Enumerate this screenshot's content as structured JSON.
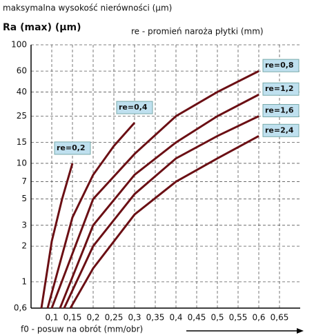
{
  "chart_data": {
    "type": "line",
    "title": "maksymalna wysokość nierówności (µm)",
    "ylabel": "Ra (max) (µm)",
    "legend_title": "re - promień naroża płytki (mm)",
    "xlabel": "f0 - posuw na obrót (mm/obr)",
    "log_y": true,
    "grid": true,
    "xlim": [
      0.05,
      0.7
    ],
    "ylim": [
      0.6,
      100
    ],
    "xticks": [
      {
        "value": 0.1,
        "label": "0,1"
      },
      {
        "value": 0.15,
        "label": "0,15"
      },
      {
        "value": 0.2,
        "label": "0,2"
      },
      {
        "value": 0.25,
        "label": "0,25"
      },
      {
        "value": 0.3,
        "label": "0,3"
      },
      {
        "value": 0.35,
        "label": "0,35"
      },
      {
        "value": 0.4,
        "label": "0,4"
      },
      {
        "value": 0.45,
        "label": "0,45"
      },
      {
        "value": 0.5,
        "label": "0,5"
      },
      {
        "value": 0.55,
        "label": "0,55"
      },
      {
        "value": 0.6,
        "label": "0,6"
      },
      {
        "value": 0.65,
        "label": "0,65"
      }
    ],
    "yticks": [
      {
        "value": 0.6,
        "label": "0,6"
      },
      1,
      2,
      3,
      5,
      7,
      10,
      15,
      25,
      40,
      60,
      100
    ],
    "series": [
      {
        "name": "re=0,2",
        "color": "#6b0f14",
        "x": [
          0.075,
          0.1,
          0.125,
          0.15
        ],
        "values": [
          0.6,
          2.2,
          5,
          10
        ]
      },
      {
        "name": "re=0,4",
        "color": "#6b0f14",
        "x": [
          0.09,
          0.15,
          0.2,
          0.25,
          0.3
        ],
        "values": [
          0.6,
          3.5,
          8,
          14,
          22
        ]
      },
      {
        "name": "re=0,8",
        "color": "#6b0f14",
        "x": [
          0.1,
          0.2,
          0.3,
          0.4,
          0.5,
          0.6
        ],
        "values": [
          0.6,
          5,
          12,
          25,
          40,
          60
        ]
      },
      {
        "name": "re=1,2",
        "color": "#6b0f14",
        "x": [
          0.12,
          0.2,
          0.3,
          0.4,
          0.5,
          0.6
        ],
        "values": [
          0.6,
          3,
          8,
          15,
          25,
          38
        ]
      },
      {
        "name": "re=1,6",
        "color": "#6b0f14",
        "x": [
          0.13,
          0.2,
          0.3,
          0.4,
          0.5,
          0.6
        ],
        "values": [
          0.6,
          2,
          5.5,
          11,
          17,
          25
        ]
      },
      {
        "name": "re=2,4",
        "color": "#6b0f14",
        "x": [
          0.145,
          0.2,
          0.3,
          0.4,
          0.5,
          0.6
        ],
        "values": [
          0.6,
          1.3,
          3.7,
          7,
          11,
          17
        ]
      }
    ]
  }
}
